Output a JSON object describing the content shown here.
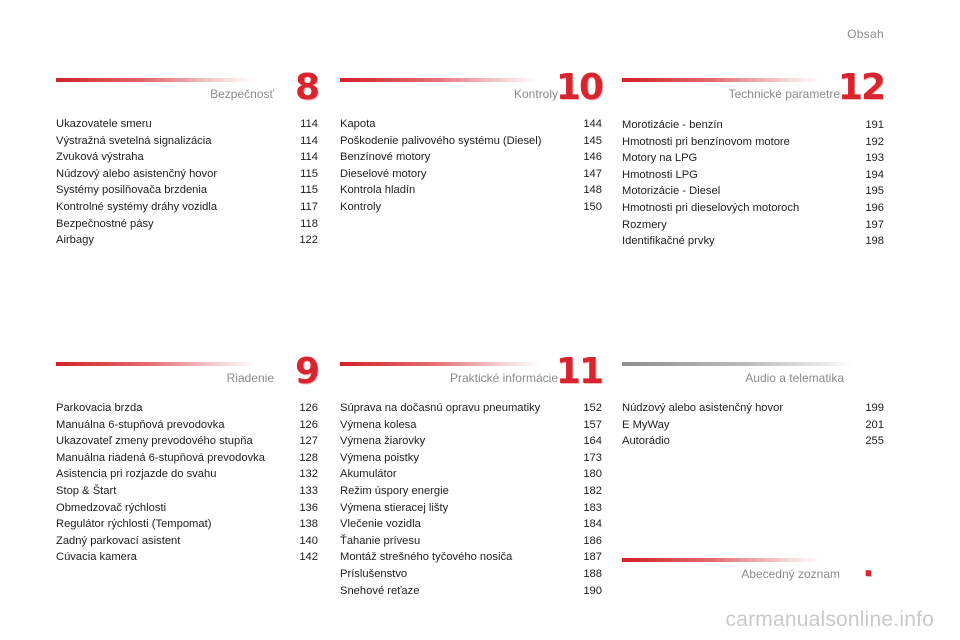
{
  "header": {
    "title": "Obsah"
  },
  "sections": [
    {
      "title": "Bezpečnosť",
      "number": "8",
      "entries": [
        {
          "label": "Ukazovatele smeru",
          "page": "114"
        },
        {
          "label": "Výstražná svetelná signalizácia",
          "page": "114"
        },
        {
          "label": "Zvuková výstraha",
          "page": "114"
        },
        {
          "label": "Núdzový alebo asistenčný hovor",
          "page": "115"
        },
        {
          "label": "Systémy posilňovača brzdenia",
          "page": "115"
        },
        {
          "label": "Kontrolné systémy dráhy vozidla",
          "page": "117"
        },
        {
          "label": "Bezpečnostné pásy",
          "page": "118"
        },
        {
          "label": "Airbagy",
          "page": "122"
        }
      ]
    },
    {
      "title": "Kontroly",
      "number": "10",
      "entries": [
        {
          "label": "Kapota",
          "page": "144"
        },
        {
          "label": "Poškodenie palivového systému (Diesel)",
          "page": "145"
        },
        {
          "label": "Benzínové motory",
          "page": "146"
        },
        {
          "label": "Dieselové motory",
          "page": "147"
        },
        {
          "label": "Kontrola hladín",
          "page": "148"
        },
        {
          "label": "Kontroly",
          "page": "150"
        }
      ]
    },
    {
      "title": "Technické parametre",
      "number": "12",
      "entries": [
        {
          "label": "Morotizácie - benzín",
          "page": "191"
        },
        {
          "label": "Hmotnosti pri benzínovom motore",
          "page": "192"
        },
        {
          "label": "Motory na LPG",
          "page": "193"
        },
        {
          "label": "Hmotnosti LPG",
          "page": "194"
        },
        {
          "label": "Motorizácie - Diesel",
          "page": "195"
        },
        {
          "label": "Hmotnosti pri dieselových motoroch",
          "page": "196"
        },
        {
          "label": "Rozmery",
          "page": "197"
        },
        {
          "label": "Identifikačné prvky",
          "page": "198"
        }
      ]
    },
    {
      "title": "Riadenie",
      "number": "9",
      "entries": [
        {
          "label": "Parkovacia brzda",
          "page": "126"
        },
        {
          "label": "Manuálna 6-stupňová prevodovka",
          "page": "126"
        },
        {
          "label": "Ukazovateľ zmeny prevodového stupňa",
          "page": "127"
        },
        {
          "label": "Manuálna riadená 6-stupňová prevodovka",
          "page": "128"
        },
        {
          "label": "Asistencia pri rozjazde do svahu",
          "page": "132"
        },
        {
          "label": "Stop & Štart",
          "page": "133"
        },
        {
          "label": "Obmedzovač rýchlosti",
          "page": "136"
        },
        {
          "label": "Regulátor rýchlosti (Tempomat)",
          "page": "138"
        },
        {
          "label": "Zadný parkovací asistent",
          "page": "140"
        },
        {
          "label": "Cúvacia kamera",
          "page": "142"
        }
      ]
    },
    {
      "title": "Praktické informácie",
      "number": "11",
      "entries": [
        {
          "label": "Súprava na dočasnú opravu pneumatiky",
          "page": "152"
        },
        {
          "label": "Výmena kolesa",
          "page": "157"
        },
        {
          "label": "Výmena žiarovky",
          "page": "164"
        },
        {
          "label": "Výmena poistky",
          "page": "173"
        },
        {
          "label": "Akumulátor",
          "page": "180"
        },
        {
          "label": "Režim úspory energie",
          "page": "182"
        },
        {
          "label": "Výmena stieracej lišty",
          "page": "183"
        },
        {
          "label": "Vlečenie vozidla",
          "page": "184"
        },
        {
          "label": "Ťahanie prívesu",
          "page": "186"
        },
        {
          "label": "Montáž strešného tyčového nosiča",
          "page": "187"
        },
        {
          "label": "Príslušenstvo",
          "page": "188"
        },
        {
          "label": "Snehové reťaze",
          "page": "190"
        }
      ]
    },
    {
      "title": "Audio a telematika",
      "number": "",
      "entries": [
        {
          "label": "Núdzový alebo asistenčný hovor",
          "page": "199"
        },
        {
          "label": "E MyWay",
          "page": "201"
        },
        {
          "label": "Autorádio",
          "page": "255"
        }
      ]
    },
    {
      "title": "Abecedný zoznam",
      "number": ".",
      "entries": []
    }
  ],
  "watermark": "carmanualsonline.info",
  "colors": {
    "accent": "#d8242e",
    "muted_text": "#8a8a8a"
  }
}
